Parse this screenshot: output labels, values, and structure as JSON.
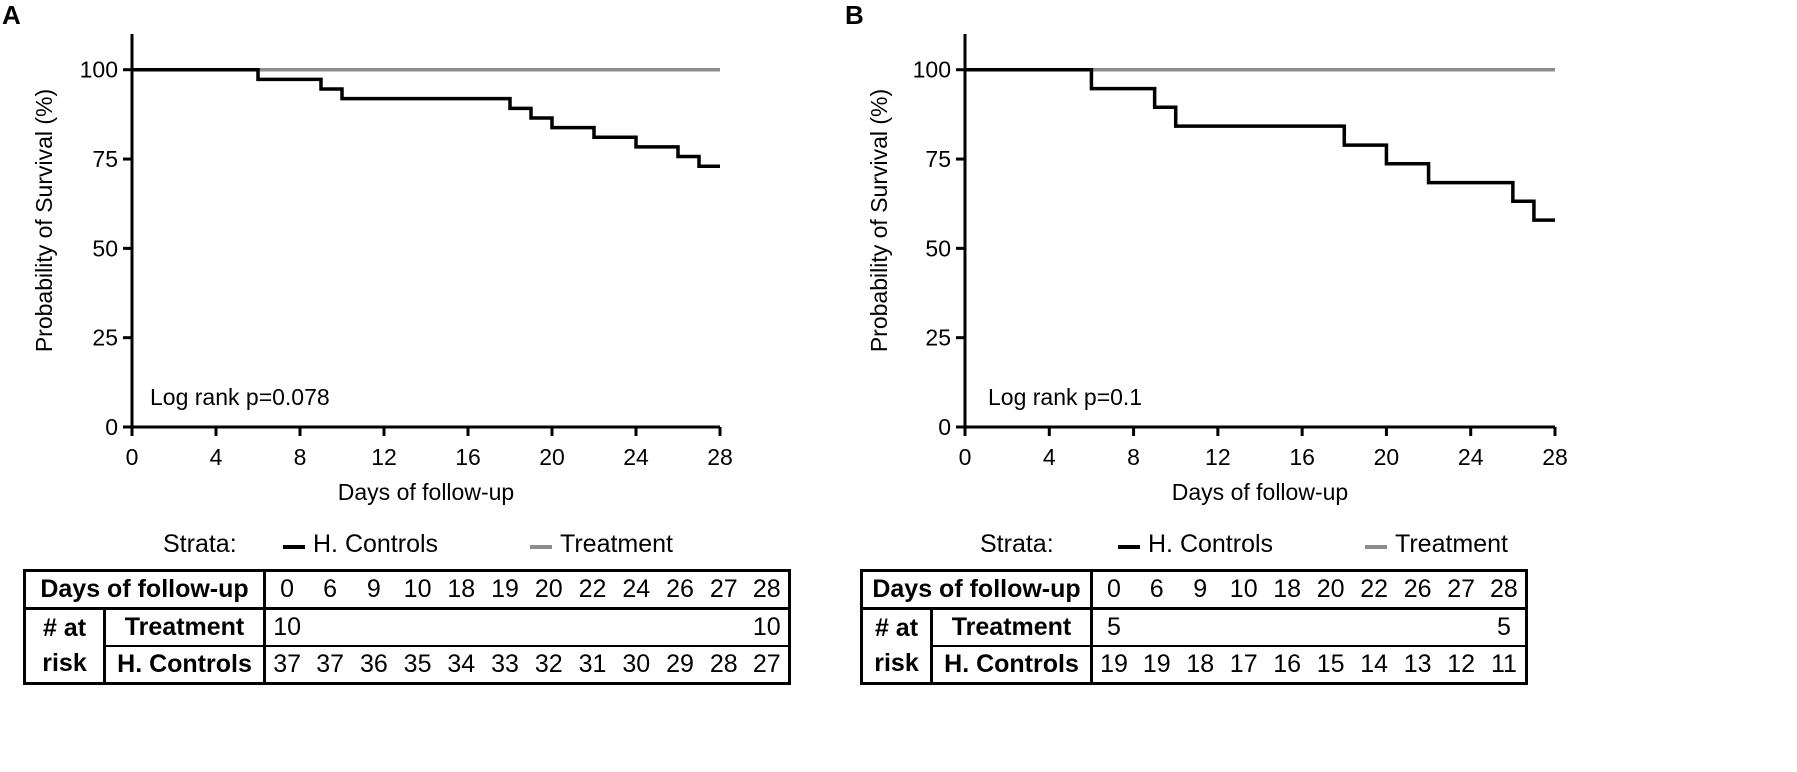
{
  "chart_data": [
    {
      "panel": "A",
      "type": "line",
      "step": true,
      "xlabel": "Days of follow-up",
      "ylabel": "Probability of Survival  (%)",
      "xlim": [
        0,
        28
      ],
      "ylim": [
        0,
        110
      ],
      "xticks": [
        0,
        4,
        8,
        12,
        16,
        20,
        24,
        28
      ],
      "yticks": [
        0,
        25,
        50,
        75,
        100
      ],
      "annotation": "Log rank p=0.078",
      "series": [
        {
          "name": "H. Controls",
          "color": "#000000",
          "x": [
            0,
            6,
            9,
            10,
            18,
            19,
            20,
            22,
            24,
            26,
            27,
            28
          ],
          "y": [
            100,
            97.3,
            94.6,
            91.9,
            89.2,
            86.5,
            83.8,
            81.1,
            78.4,
            75.7,
            73.0,
            73.0
          ]
        },
        {
          "name": "Treatment",
          "color": "#8c8c8c",
          "x": [
            0,
            28
          ],
          "y": [
            100,
            100
          ]
        }
      ],
      "legend": {
        "title": "Strata:",
        "items": [
          "H. Controls",
          "Treatment"
        ]
      },
      "risk_table": {
        "header_label": "Days of follow-up",
        "group_label": [
          "# at",
          "risk"
        ],
        "days": [
          "0",
          "6",
          "9",
          "10",
          "18",
          "19",
          "20",
          "22",
          "24",
          "26",
          "27",
          "28"
        ],
        "rows": [
          {
            "label": "Treatment",
            "values": [
              "10",
              "",
              "",
              "",
              "",
              "",
              "",
              "",
              "",
              "",
              "",
              "10"
            ]
          },
          {
            "label": "H. Controls",
            "values": [
              "37",
              "37",
              "36",
              "35",
              "34",
              "33",
              "32",
              "31",
              "30",
              "29",
              "28",
              "27"
            ]
          }
        ]
      }
    },
    {
      "panel": "B",
      "type": "line",
      "step": true,
      "xlabel": "Days of follow-up",
      "ylabel": "Probability of Survival (%)",
      "xlim": [
        0,
        28
      ],
      "ylim": [
        0,
        110
      ],
      "xticks": [
        0,
        4,
        8,
        12,
        16,
        20,
        24,
        28
      ],
      "yticks": [
        0,
        25,
        50,
        75,
        100
      ],
      "annotation": "Log rank p=0.1",
      "series": [
        {
          "name": "H. Controls",
          "color": "#000000",
          "x": [
            0,
            6,
            9,
            10,
            18,
            20,
            22,
            26,
            27,
            28
          ],
          "y": [
            100,
            94.7,
            89.5,
            84.2,
            78.9,
            73.7,
            68.4,
            63.2,
            57.9,
            57.9
          ]
        },
        {
          "name": "Treatment",
          "color": "#8c8c8c",
          "x": [
            0,
            28
          ],
          "y": [
            100,
            100
          ]
        }
      ],
      "legend": {
        "title": "Strata:",
        "items": [
          "H. Controls",
          "Treatment"
        ]
      },
      "risk_table": {
        "header_label": "Days of follow-up",
        "group_label": [
          "# at",
          "risk"
        ],
        "days": [
          "0",
          "6",
          "9",
          "10",
          "18",
          "20",
          "22",
          "26",
          "27",
          "28"
        ],
        "rows": [
          {
            "label": "Treatment",
            "values": [
              "5",
              "",
              "",
              "",
              "",
              "",
              "",
              "",
              "",
              "5"
            ]
          },
          {
            "label": "H. Controls",
            "values": [
              "19",
              "19",
              "18",
              "17",
              "16",
              "15",
              "14",
              "13",
              "12",
              "11"
            ]
          }
        ]
      }
    }
  ]
}
